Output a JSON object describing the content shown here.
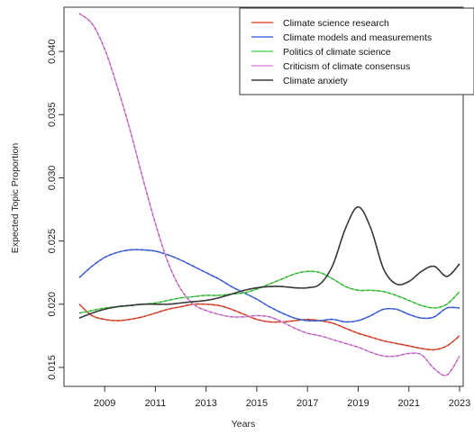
{
  "chart_data": {
    "type": "line",
    "title": "",
    "xlabel": "Years",
    "ylabel": "Expected Topic Proportion",
    "xlim": [
      2008,
      2023
    ],
    "ylim": [
      0.0135,
      0.0435
    ],
    "x_ticks": [
      2009,
      2011,
      2013,
      2015,
      2017,
      2019,
      2021,
      2023
    ],
    "y_ticks": [
      0.015,
      0.02,
      0.025,
      0.03,
      0.035,
      0.04
    ],
    "y_tick_labels": [
      "0.015",
      "0.020",
      "0.025",
      "0.030",
      "0.035",
      "0.040"
    ],
    "grid": false,
    "legend_position": "top-right",
    "series": [
      {
        "name": "Climate science research",
        "color": "#e8553e",
        "points": [
          [
            2008,
            0.02
          ],
          [
            2008.5,
            0.0191
          ],
          [
            2009,
            0.0188
          ],
          [
            2009.5,
            0.0187
          ],
          [
            2010,
            0.0188
          ],
          [
            2010.5,
            0.019
          ],
          [
            2011,
            0.0193
          ],
          [
            2011.5,
            0.0196
          ],
          [
            2012,
            0.0198
          ],
          [
            2012.5,
            0.02
          ],
          [
            2013,
            0.02
          ],
          [
            2013.5,
            0.0199
          ],
          [
            2014,
            0.0196
          ],
          [
            2014.5,
            0.0192
          ],
          [
            2015,
            0.0188
          ],
          [
            2015.5,
            0.0186
          ],
          [
            2016,
            0.0186
          ],
          [
            2016.5,
            0.0187
          ],
          [
            2017,
            0.0188
          ],
          [
            2017.5,
            0.0187
          ],
          [
            2018,
            0.0185
          ],
          [
            2018.5,
            0.0181
          ],
          [
            2019,
            0.0177
          ],
          [
            2019.5,
            0.0174
          ],
          [
            2020,
            0.0171
          ],
          [
            2020.5,
            0.0169
          ],
          [
            2021,
            0.0167
          ],
          [
            2021.5,
            0.0165
          ],
          [
            2022,
            0.0164
          ],
          [
            2022.5,
            0.0167
          ],
          [
            2023,
            0.0175
          ]
        ]
      },
      {
        "name": "Climate models and measurements",
        "color": "#4a6ee8",
        "points": [
          [
            2008,
            0.0221
          ],
          [
            2008.5,
            0.023
          ],
          [
            2009,
            0.0237
          ],
          [
            2009.5,
            0.0241
          ],
          [
            2010,
            0.0243
          ],
          [
            2010.5,
            0.0243
          ],
          [
            2011,
            0.0242
          ],
          [
            2011.5,
            0.0239
          ],
          [
            2012,
            0.0235
          ],
          [
            2012.5,
            0.023
          ],
          [
            2013,
            0.0225
          ],
          [
            2013.5,
            0.022
          ],
          [
            2014,
            0.0214
          ],
          [
            2014.5,
            0.0209
          ],
          [
            2015,
            0.0204
          ],
          [
            2015.5,
            0.0198
          ],
          [
            2016,
            0.0193
          ],
          [
            2016.5,
            0.0189
          ],
          [
            2017,
            0.0187
          ],
          [
            2017.5,
            0.0187
          ],
          [
            2018,
            0.0188
          ],
          [
            2018.5,
            0.0186
          ],
          [
            2019,
            0.0187
          ],
          [
            2019.5,
            0.0191
          ],
          [
            2020,
            0.0196
          ],
          [
            2020.5,
            0.0196
          ],
          [
            2021,
            0.0192
          ],
          [
            2021.5,
            0.0189
          ],
          [
            2022,
            0.019
          ],
          [
            2022.5,
            0.0197
          ],
          [
            2023,
            0.0197
          ]
        ]
      },
      {
        "name": "Politics of climate science",
        "color": "#5cd65c",
        "points": [
          [
            2008,
            0.0193
          ],
          [
            2008.5,
            0.0195
          ],
          [
            2009,
            0.0197
          ],
          [
            2009.5,
            0.0198
          ],
          [
            2010,
            0.0199
          ],
          [
            2010.5,
            0.02
          ],
          [
            2011,
            0.0201
          ],
          [
            2011.5,
            0.0203
          ],
          [
            2012,
            0.0205
          ],
          [
            2012.5,
            0.0206
          ],
          [
            2013,
            0.0207
          ],
          [
            2013.5,
            0.0207
          ],
          [
            2014,
            0.0208
          ],
          [
            2014.5,
            0.0209
          ],
          [
            2015,
            0.0212
          ],
          [
            2015.5,
            0.0216
          ],
          [
            2016,
            0.022
          ],
          [
            2016.5,
            0.0224
          ],
          [
            2017,
            0.0226
          ],
          [
            2017.5,
            0.0225
          ],
          [
            2018,
            0.022
          ],
          [
            2018.5,
            0.0214
          ],
          [
            2019,
            0.0211
          ],
          [
            2019.5,
            0.0211
          ],
          [
            2020,
            0.021
          ],
          [
            2020.5,
            0.0207
          ],
          [
            2021,
            0.0203
          ],
          [
            2021.5,
            0.0199
          ],
          [
            2022,
            0.0197
          ],
          [
            2022.5,
            0.02
          ],
          [
            2023,
            0.021
          ]
        ]
      },
      {
        "name": "Criticism of climate consensus",
        "color": "#e08de0",
        "points": [
          [
            2008,
            0.043
          ],
          [
            2008.5,
            0.0422
          ],
          [
            2009,
            0.0402
          ],
          [
            2009.5,
            0.0372
          ],
          [
            2010,
            0.0338
          ],
          [
            2010.5,
            0.03
          ],
          [
            2011,
            0.0264
          ],
          [
            2011.5,
            0.0233
          ],
          [
            2012,
            0.0212
          ],
          [
            2012.5,
            0.02
          ],
          [
            2013,
            0.0195
          ],
          [
            2013.5,
            0.0192
          ],
          [
            2014,
            0.019
          ],
          [
            2014.5,
            0.019
          ],
          [
            2015,
            0.0191
          ],
          [
            2015.5,
            0.019
          ],
          [
            2016,
            0.0186
          ],
          [
            2016.5,
            0.0181
          ],
          [
            2017,
            0.0177
          ],
          [
            2017.5,
            0.0175
          ],
          [
            2018,
            0.0172
          ],
          [
            2018.5,
            0.0169
          ],
          [
            2019,
            0.0166
          ],
          [
            2019.5,
            0.0162
          ],
          [
            2020,
            0.0159
          ],
          [
            2020.5,
            0.0159
          ],
          [
            2021,
            0.0161
          ],
          [
            2021.5,
            0.016
          ],
          [
            2022,
            0.0149
          ],
          [
            2022.5,
            0.0144
          ],
          [
            2023,
            0.0159
          ]
        ]
      },
      {
        "name": "Climate anxiety",
        "color": "#3c3c3c",
        "points": [
          [
            2008,
            0.0189
          ],
          [
            2008.5,
            0.0193
          ],
          [
            2009,
            0.0196
          ],
          [
            2009.5,
            0.0198
          ],
          [
            2010,
            0.0199
          ],
          [
            2010.5,
            0.02
          ],
          [
            2011,
            0.02
          ],
          [
            2011.5,
            0.02
          ],
          [
            2012,
            0.0201
          ],
          [
            2012.5,
            0.0202
          ],
          [
            2013,
            0.0203
          ],
          [
            2013.5,
            0.0205
          ],
          [
            2014,
            0.0208
          ],
          [
            2014.5,
            0.0211
          ],
          [
            2015,
            0.0213
          ],
          [
            2015.5,
            0.0214
          ],
          [
            2016,
            0.0214
          ],
          [
            2016.5,
            0.0213
          ],
          [
            2017,
            0.0213
          ],
          [
            2017.5,
            0.0216
          ],
          [
            2018,
            0.0231
          ],
          [
            2018.5,
            0.026
          ],
          [
            2019,
            0.0277
          ],
          [
            2019.5,
            0.026
          ],
          [
            2020,
            0.0228
          ],
          [
            2020.5,
            0.0216
          ],
          [
            2021,
            0.0218
          ],
          [
            2021.5,
            0.0226
          ],
          [
            2022,
            0.023
          ],
          [
            2022.5,
            0.0222
          ],
          [
            2023,
            0.0232
          ]
        ]
      }
    ]
  }
}
